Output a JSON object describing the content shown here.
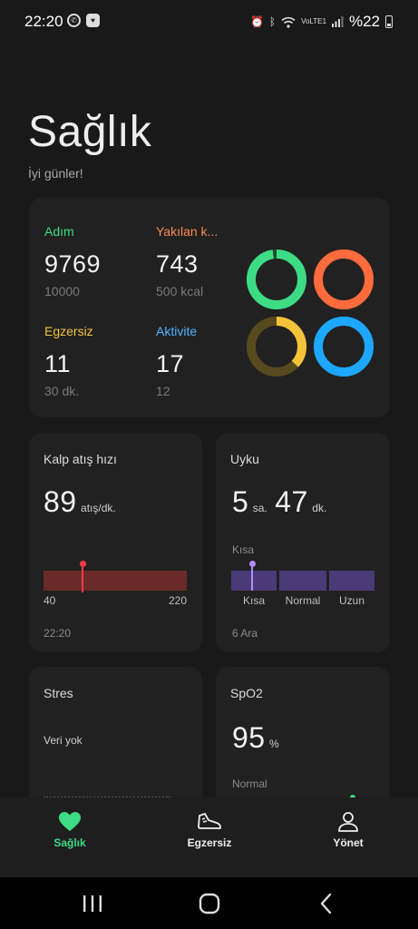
{
  "status_bar": {
    "time": "22:20",
    "battery": "%22",
    "network": "VoLTE1"
  },
  "header": {
    "title": "Sağlık",
    "greeting": "İyi günler!"
  },
  "summary": {
    "steps": {
      "label": "Adım",
      "value": "9769",
      "goal": "10000",
      "color": "#3ddc84",
      "progress": 0.977
    },
    "calories": {
      "label": "Yakılan k...",
      "value": "743",
      "goal": "500 kcal",
      "color": "#ff6b3d",
      "progress": 1.0
    },
    "exercise": {
      "label": "Egzersiz",
      "value": "11",
      "goal": "30 dk.",
      "color": "#f5c33b",
      "progress": 0.37
    },
    "activity": {
      "label": "Aktivite",
      "value": "17",
      "goal": "12",
      "color": "#1ea7ff",
      "progress": 1.0
    }
  },
  "heart_rate": {
    "title": "Kalp atış hızı",
    "value": "89",
    "unit": "atış/dk.",
    "range_min": "40",
    "range_max": "220",
    "value_num": 89,
    "time": "22:20"
  },
  "sleep": {
    "title": "Uyku",
    "hours": "5",
    "hours_unit": "sa.",
    "minutes": "47",
    "minutes_unit": "dk.",
    "current_label": "Kısa",
    "segments": [
      "Kısa",
      "Normal",
      "Uzun"
    ],
    "date": "6 Ara"
  },
  "stress": {
    "title": "Stres",
    "status": "Veri yok"
  },
  "spo2": {
    "title": "SpO2",
    "value": "95",
    "unit": "%",
    "status": "Normal"
  },
  "bottom_nav": {
    "items": [
      {
        "label": "Sağlık",
        "icon": "heart-icon",
        "active": true
      },
      {
        "label": "Egzersiz",
        "icon": "shoe-icon",
        "active": false
      },
      {
        "label": "Yönet",
        "icon": "person-icon",
        "active": false
      }
    ]
  },
  "colors": {
    "accent": "#3ddc84",
    "heart_bar": "#6b2a2a",
    "heart_marker": "#ff3b4a",
    "sleep_bar": "#4a3a78",
    "sleep_marker": "#b48cff"
  }
}
